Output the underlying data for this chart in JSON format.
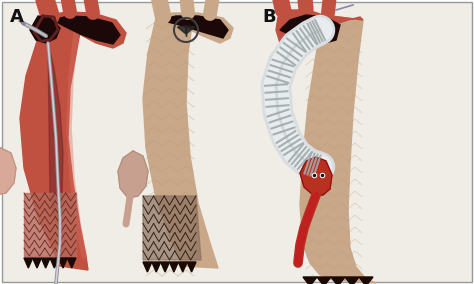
{
  "fig_width": 4.74,
  "fig_height": 2.84,
  "dpi": 100,
  "bg": "#ffffff",
  "panel_bg": "#f0ece6",
  "border_color": "#999999",
  "label_A": "A",
  "label_B": "B",
  "label_fontsize": 13,
  "aorta_red": "#c05040",
  "aorta_tan": "#c8a888",
  "aorta_dark": "#8b3020",
  "stent_mesh": "#b87060",
  "lumen_dark": "#1c0808",
  "graft_white": "#d8dde0",
  "graft_rib": "#a0aaaa",
  "heart_pink": "#d8a898",
  "heart_red": "#b83020",
  "serration_dark": "#1a0a02",
  "wire_gray": "#a0a0a8",
  "catheter_gray": "#909098"
}
